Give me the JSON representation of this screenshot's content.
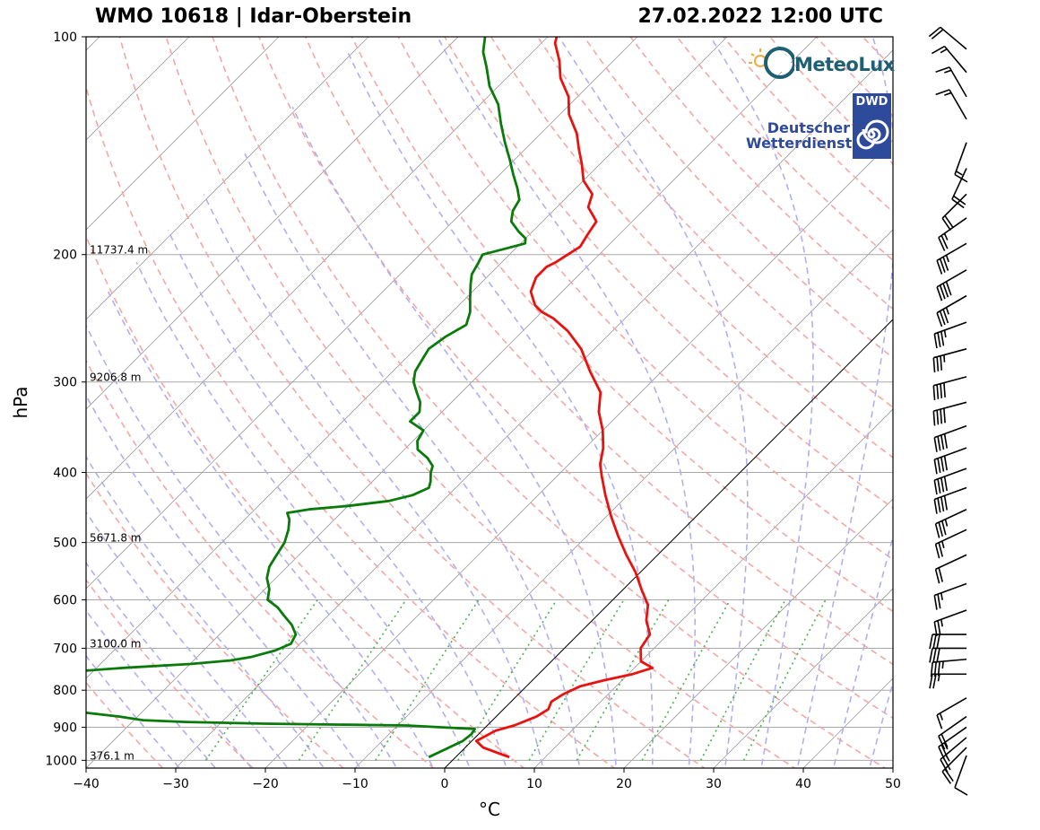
{
  "header": {
    "title_left": "WMO 10618 | Idar-Oberstein",
    "title_right": "27.02.2022 12:00 UTC"
  },
  "logos": {
    "meteolux_text": "MeteoLux",
    "dwd_badge": "DWD",
    "dwd_line1": "Deutscher",
    "dwd_line2": "Wetterdienst"
  },
  "colors": {
    "temperature": "#e8120e",
    "dewpoint": "#0a7a0a",
    "dry_adiabat": "#f4a7a4",
    "moist_adiabat": "#b0b0f0",
    "mixing_ratio": "#4caf50",
    "isotherm": "#9a9a9a",
    "isobar": "#a8a8a8"
  },
  "chart_data": {
    "type": "skew-t",
    "xlabel": "°C",
    "ylabel": "hPa",
    "xlim": [
      -40,
      50
    ],
    "ylim": [
      1025,
      100
    ],
    "y_scale": "log",
    "x_ticks": [
      -40,
      -30,
      -20,
      -10,
      0,
      10,
      20,
      30,
      40,
      50
    ],
    "y_ticks": [
      100,
      200,
      300,
      400,
      500,
      600,
      700,
      800,
      900,
      1000
    ],
    "grid": true,
    "height_labels": [
      {
        "p": 200,
        "text": "11737.4 m"
      },
      {
        "p": 300,
        "text": "9206.8 m"
      },
      {
        "p": 500,
        "text": "5671.8 m"
      },
      {
        "p": 700,
        "text": "3100.0 m"
      },
      {
        "p": 1000,
        "text": "376.1 m"
      }
    ],
    "temperature_profile": [
      [
        990,
        6.0
      ],
      [
        975,
        4.0
      ],
      [
        960,
        2.0
      ],
      [
        940,
        0.5
      ],
      [
        925,
        1.0
      ],
      [
        910,
        1.5
      ],
      [
        895,
        3.0
      ],
      [
        870,
        4.5
      ],
      [
        850,
        5.0
      ],
      [
        830,
        4.5
      ],
      [
        810,
        5.0
      ],
      [
        790,
        6.0
      ],
      [
        775,
        8.0
      ],
      [
        760,
        10.5
      ],
      [
        745,
        12.0
      ],
      [
        730,
        10.0
      ],
      [
        700,
        8.5
      ],
      [
        670,
        8.0
      ],
      [
        640,
        6.0
      ],
      [
        610,
        4.5
      ],
      [
        580,
        2.0
      ],
      [
        550,
        -0.5
      ],
      [
        520,
        -3.5
      ],
      [
        490,
        -6.5
      ],
      [
        460,
        -9.5
      ],
      [
        430,
        -12.5
      ],
      [
        405,
        -15.0
      ],
      [
        390,
        -16.5
      ],
      [
        370,
        -18.0
      ],
      [
        350,
        -20.0
      ],
      [
        330,
        -22.5
      ],
      [
        310,
        -24.5
      ],
      [
        290,
        -28.0
      ],
      [
        270,
        -31.5
      ],
      [
        255,
        -35.0
      ],
      [
        245,
        -38.0
      ],
      [
        240,
        -40.0
      ],
      [
        235,
        -41.5
      ],
      [
        225,
        -43.5
      ],
      [
        215,
        -44.5
      ],
      [
        208,
        -44.5
      ],
      [
        205,
        -44.0
      ],
      [
        200,
        -43.5
      ],
      [
        195,
        -43.0
      ],
      [
        188,
        -43.5
      ],
      [
        180,
        -44.0
      ],
      [
        172,
        -46.5
      ],
      [
        165,
        -47.5
      ],
      [
        158,
        -50.0
      ],
      [
        150,
        -52.0
      ],
      [
        143,
        -54.0
      ],
      [
        136,
        -56.0
      ],
      [
        128,
        -59.0
      ],
      [
        121,
        -61.0
      ],
      [
        114,
        -64.0
      ],
      [
        108,
        -66.0
      ],
      [
        102,
        -68.5
      ],
      [
        100,
        -69.0
      ]
    ],
    "dewpoint_profile": [
      [
        990,
        -3.0
      ],
      [
        965,
        -2.0
      ],
      [
        940,
        -1.0
      ],
      [
        920,
        -0.8
      ],
      [
        905,
        -1.0
      ],
      [
        900,
        -5.0
      ],
      [
        895,
        -9.0
      ],
      [
        890,
        -25.0
      ],
      [
        885,
        -34.0
      ],
      [
        880,
        -39.0
      ],
      [
        870,
        -42.0
      ],
      [
        860,
        -46.0
      ],
      [
        845,
        -52.0
      ],
      [
        830,
        -55.0
      ],
      [
        815,
        -58.0
      ],
      [
        805,
        -61.0
      ],
      [
        790,
        -62.0
      ],
      [
        770,
        -60.0
      ],
      [
        760,
        -56.0
      ],
      [
        752,
        -51.0
      ],
      [
        745,
        -47.0
      ],
      [
        736,
        -40.0
      ],
      [
        728,
        -36.0
      ],
      [
        720,
        -34.0
      ],
      [
        705,
        -32.0
      ],
      [
        690,
        -31.0
      ],
      [
        670,
        -31.5
      ],
      [
        650,
        -33.0
      ],
      [
        630,
        -35.0
      ],
      [
        615,
        -36.5
      ],
      [
        600,
        -38.5
      ],
      [
        580,
        -39.5
      ],
      [
        560,
        -41.0
      ],
      [
        540,
        -42.0
      ],
      [
        520,
        -42.5
      ],
      [
        500,
        -43.0
      ],
      [
        480,
        -44.0
      ],
      [
        465,
        -45.0
      ],
      [
        455,
        -46.0
      ],
      [
        450,
        -44.0
      ],
      [
        445,
        -40.0
      ],
      [
        438,
        -36.0
      ],
      [
        430,
        -34.0
      ],
      [
        420,
        -33.0
      ],
      [
        412,
        -33.5
      ],
      [
        400,
        -34.5
      ],
      [
        392,
        -35.0
      ],
      [
        382,
        -36.5
      ],
      [
        372,
        -38.5
      ],
      [
        362,
        -39.5
      ],
      [
        350,
        -40.0
      ],
      [
        340,
        -42.5
      ],
      [
        330,
        -42.5
      ],
      [
        320,
        -43.5
      ],
      [
        310,
        -45.0
      ],
      [
        300,
        -46.5
      ],
      [
        290,
        -47.5
      ],
      [
        280,
        -48.0
      ],
      [
        270,
        -48.5
      ],
      [
        260,
        -48.0
      ],
      [
        250,
        -47.0
      ],
      [
        240,
        -48.0
      ],
      [
        230,
        -49.5
      ],
      [
        220,
        -51.0
      ],
      [
        213,
        -52.0
      ],
      [
        206,
        -52.5
      ],
      [
        200,
        -53.0
      ],
      [
        196,
        -51.0
      ],
      [
        193,
        -49.5
      ],
      [
        190,
        -50.0
      ],
      [
        186,
        -51.5
      ],
      [
        180,
        -53.5
      ],
      [
        174,
        -54.5
      ],
      [
        168,
        -55.0
      ],
      [
        162,
        -56.5
      ],
      [
        155,
        -58.5
      ],
      [
        148,
        -60.5
      ],
      [
        140,
        -63.0
      ],
      [
        132,
        -65.5
      ],
      [
        124,
        -68.0
      ],
      [
        117,
        -71.0
      ],
      [
        110,
        -73.5
      ],
      [
        105,
        -75.5
      ],
      [
        100,
        -77.0
      ]
    ],
    "wind_barbs": [
      {
        "p": 985,
        "dir": 200,
        "speed": 10
      },
      {
        "p": 960,
        "dir": 225,
        "speed": 20
      },
      {
        "p": 930,
        "dir": 230,
        "speed": 25
      },
      {
        "p": 900,
        "dir": 235,
        "speed": 25
      },
      {
        "p": 870,
        "dir": 235,
        "speed": 20
      },
      {
        "p": 820,
        "dir": 240,
        "speed": 15
      },
      {
        "p": 760,
        "dir": 270,
        "speed": 25
      },
      {
        "p": 725,
        "dir": 265,
        "speed": 35
      },
      {
        "p": 700,
        "dir": 270,
        "speed": 30
      },
      {
        "p": 670,
        "dir": 270,
        "speed": 30
      },
      {
        "p": 620,
        "dir": 250,
        "speed": 25
      },
      {
        "p": 570,
        "dir": 250,
        "speed": 25
      },
      {
        "p": 520,
        "dir": 245,
        "speed": 20
      },
      {
        "p": 480,
        "dir": 245,
        "speed": 25
      },
      {
        "p": 450,
        "dir": 245,
        "speed": 35
      },
      {
        "p": 420,
        "dir": 250,
        "speed": 40
      },
      {
        "p": 395,
        "dir": 250,
        "speed": 40
      },
      {
        "p": 370,
        "dir": 250,
        "speed": 40
      },
      {
        "p": 345,
        "dir": 250,
        "speed": 40
      },
      {
        "p": 320,
        "dir": 255,
        "speed": 40
      },
      {
        "p": 295,
        "dir": 255,
        "speed": 40
      },
      {
        "p": 270,
        "dir": 255,
        "speed": 35
      },
      {
        "p": 248,
        "dir": 250,
        "speed": 35
      },
      {
        "p": 228,
        "dir": 240,
        "speed": 35
      },
      {
        "p": 210,
        "dir": 240,
        "speed": 40
      },
      {
        "p": 193,
        "dir": 240,
        "speed": 35
      },
      {
        "p": 178,
        "dir": 235,
        "speed": 25
      },
      {
        "p": 165,
        "dir": 225,
        "speed": 20
      },
      {
        "p": 152,
        "dir": 205,
        "speed": 20
      },
      {
        "p": 140,
        "dir": 200,
        "speed": 15
      },
      {
        "p": 130,
        "dir": 330,
        "speed": 15
      },
      {
        "p": 121,
        "dir": 330,
        "speed": 15
      },
      {
        "p": 112,
        "dir": 320,
        "speed": 15
      },
      {
        "p": 104,
        "dir": 310,
        "speed": 20
      }
    ]
  }
}
